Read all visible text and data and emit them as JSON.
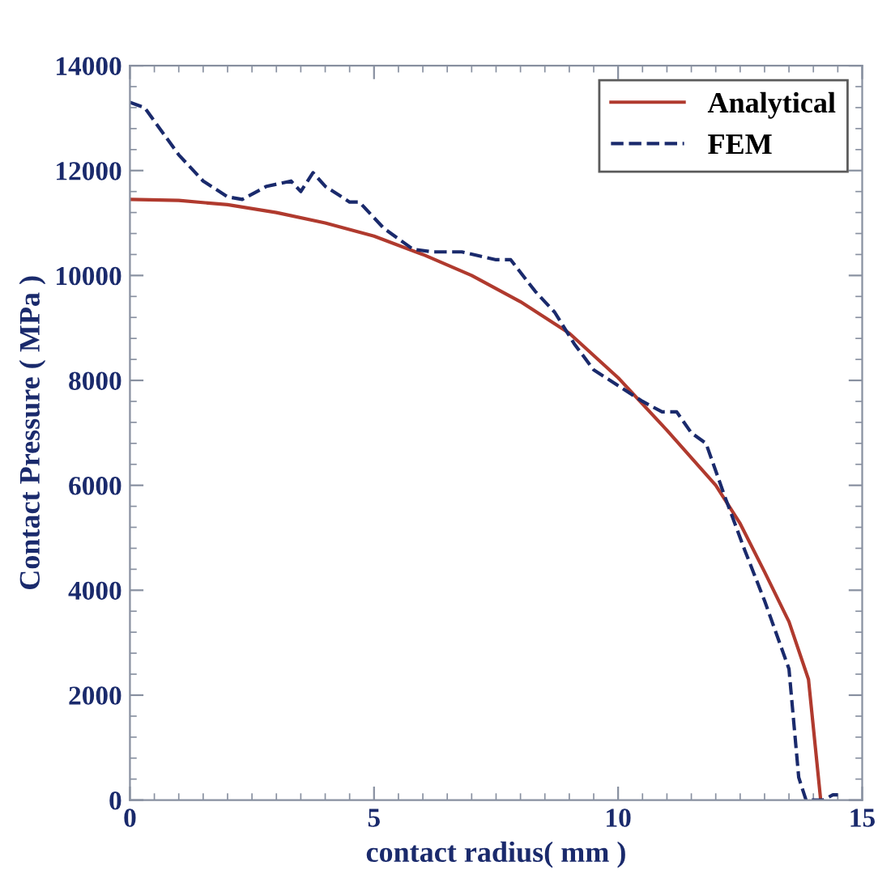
{
  "chart_data": {
    "type": "line",
    "xlabel": "contact radius( mm )",
    "ylabel": "Contact Pressure ( MPa )",
    "xlim": [
      0,
      15
    ],
    "xticks": [
      0,
      5,
      10,
      15
    ],
    "ylim": [
      0,
      14000
    ],
    "yticks": [
      0,
      2000,
      4000,
      6000,
      8000,
      10000,
      12000,
      14000
    ],
    "grid": false,
    "legend": "top right",
    "series": [
      {
        "name": "Analytical",
        "color": "#b03a2e",
        "line_style": "solid",
        "x": [
          0,
          1,
          2,
          3,
          4,
          5,
          6,
          7,
          8,
          9,
          10,
          11,
          12,
          12.5,
          13,
          13.5,
          13.9,
          14.15
        ],
        "values": [
          11450,
          11430,
          11350,
          11200,
          11000,
          10750,
          10400,
          10000,
          9500,
          8900,
          8050,
          7050,
          6000,
          5270,
          4350,
          3400,
          2300,
          0
        ]
      },
      {
        "name": "FEM",
        "color": "#1a2a6c",
        "line_style": "dashed",
        "x": [
          0,
          0.3,
          1,
          1.5,
          2,
          2.3,
          2.8,
          3.3,
          3.5,
          3.75,
          4,
          4.5,
          4.7,
          5.2,
          5.8,
          6.2,
          6.8,
          7.5,
          7.8,
          8.3,
          8.7,
          9.1,
          9.5,
          10,
          10.5,
          10.9,
          11.2,
          11.5,
          11.8,
          12.2,
          12.6,
          13.0,
          13.5,
          13.7,
          13.85,
          14.2,
          14.4,
          14.5
        ],
        "values": [
          13300,
          13200,
          12300,
          11800,
          11500,
          11450,
          11700,
          11800,
          11600,
          11960,
          11700,
          11400,
          11400,
          10900,
          10500,
          10450,
          10450,
          10300,
          10300,
          9700,
          9300,
          8700,
          8200,
          7900,
          7600,
          7400,
          7400,
          7000,
          6800,
          5750,
          4750,
          3800,
          2500,
          430,
          0,
          0,
          100,
          100
        ]
      }
    ]
  }
}
